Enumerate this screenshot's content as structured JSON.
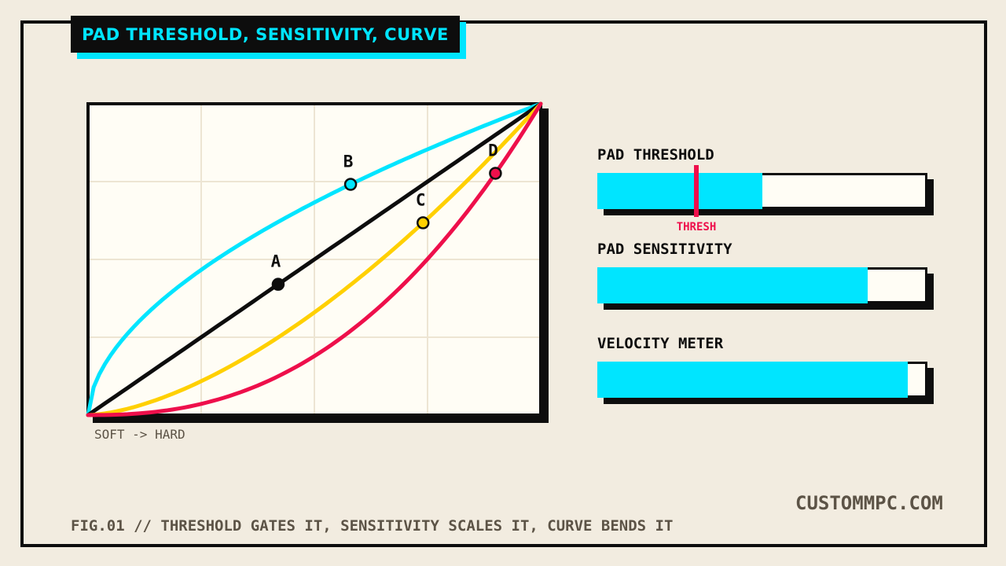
{
  "title": "PAD THRESHOLD, SENSITIVITY, CURVE",
  "graph": {
    "axis_caption": "SOFT -> HARD",
    "grid_divisions": {
      "x": 4,
      "y": 4
    },
    "curves": [
      {
        "id": "log",
        "color": "#00e5ff",
        "exponent": 0.55
      },
      {
        "id": "linear",
        "color": "#0d0d0d",
        "exponent": 1.0
      },
      {
        "id": "soft",
        "color": "#ffd000",
        "exponent": 1.6
      },
      {
        "id": "exp",
        "color": "#ee0f4b",
        "exponent": 2.4
      }
    ],
    "points": [
      {
        "label": "A",
        "curve": "linear",
        "input": 0.42,
        "color": "#0d0d0d"
      },
      {
        "label": "B",
        "curve": "log",
        "input": 0.58,
        "color": "#00e5ff"
      },
      {
        "label": "C",
        "curve": "soft",
        "input": 0.74,
        "color": "#ffd000"
      },
      {
        "label": "D",
        "curve": "exp",
        "input": 0.9,
        "color": "#ee0f4b"
      }
    ]
  },
  "meters": {
    "threshold": {
      "label": "PAD THRESHOLD",
      "level": 0.5,
      "marker": 0.3,
      "marker_label": "THRESH"
    },
    "sensitivity": {
      "label": "PAD SENSITIVITY",
      "level": 0.82
    },
    "velocity": {
      "label": "VELOCITY METER",
      "level": 0.94
    }
  },
  "colors": {
    "accent": "#00e5ff",
    "ink": "#0d0d0d",
    "warn": "#ee0f4b",
    "paper": "#f2ece0"
  },
  "brand": "CUSTOMMPC.COM",
  "footer": "FIG.01 // THRESHOLD GATES IT, SENSITIVITY SCALES IT, CURVE BENDS IT"
}
